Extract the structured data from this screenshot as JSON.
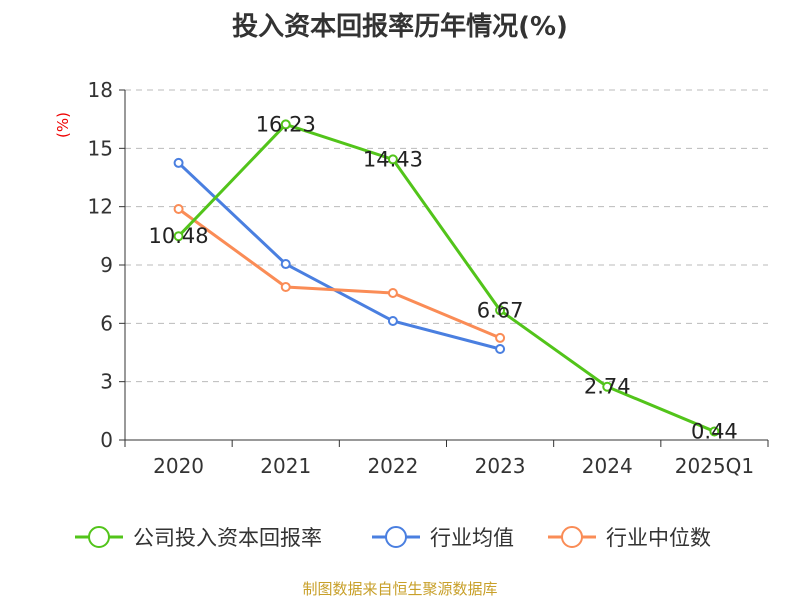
{
  "chart_data": {
    "type": "line",
    "title": "投入资本回报率历年情况(%)",
    "ylabel": "(%)",
    "xlabel": "",
    "categories": [
      "2020",
      "2021",
      "2022",
      "2023",
      "2024",
      "2025Q1"
    ],
    "ylim": [
      0,
      18
    ],
    "yticks": [
      0,
      3,
      6,
      9,
      12,
      15,
      18
    ],
    "grid": true,
    "legend_position": "bottom",
    "series": [
      {
        "name": "公司投入资本回报率",
        "color": "#52c41a",
        "values": [
          10.48,
          16.23,
          14.43,
          6.67,
          2.74,
          0.44
        ],
        "labels": [
          "10.48",
          "16.23",
          "14.43",
          "6.67",
          "2.74",
          "0.44"
        ]
      },
      {
        "name": "行业均值",
        "color": "#4a7fe0",
        "values": [
          14.25,
          9.05,
          6.12,
          4.68,
          null,
          null
        ]
      },
      {
        "name": "行业中位数",
        "color": "#fa8c56",
        "values": [
          11.88,
          7.87,
          7.56,
          5.25,
          null,
          null
        ]
      }
    ]
  },
  "source": "制图数据来自恒生聚源数据库"
}
